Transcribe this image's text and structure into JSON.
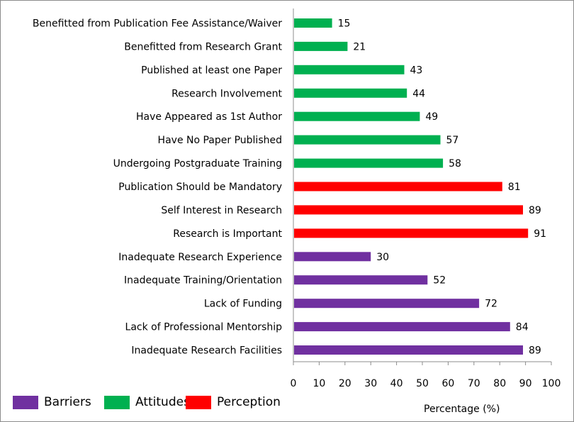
{
  "chart_data": {
    "type": "bar",
    "orientation": "horizontal",
    "xlabel": "Percentage (%)",
    "xlim": [
      0,
      100
    ],
    "xticks": [
      0,
      10,
      20,
      30,
      40,
      50,
      60,
      70,
      80,
      90,
      100
    ],
    "grid": false,
    "legend": {
      "placement": "bottom-left",
      "entries": [
        {
          "name": "Barriers",
          "color": "#7030a0"
        },
        {
          "name": "Attitudes",
          "color": "#00b050"
        },
        {
          "name": "Perception",
          "color": "#ff0000"
        }
      ]
    },
    "bars": [
      {
        "label": "Benefitted from Publication Fee Assistance/Waiver",
        "value": 15,
        "group": "Attitudes"
      },
      {
        "label": "Benefitted from Research Grant",
        "value": 21,
        "group": "Attitudes"
      },
      {
        "label": "Published at least one Paper",
        "value": 43,
        "group": "Attitudes"
      },
      {
        "label": "Research Involvement",
        "value": 44,
        "group": "Attitudes"
      },
      {
        "label": "Have Appeared as 1st Author",
        "value": 49,
        "group": "Attitudes"
      },
      {
        "label": "Have No Paper Published",
        "value": 57,
        "group": "Attitudes"
      },
      {
        "label": "Undergoing Postgraduate Training",
        "value": 58,
        "group": "Attitudes"
      },
      {
        "label": "Publication Should be Mandatory",
        "value": 81,
        "group": "Perception"
      },
      {
        "label": "Self Interest in Research",
        "value": 89,
        "group": "Perception"
      },
      {
        "label": "Research is Important",
        "value": 91,
        "group": "Perception"
      },
      {
        "label": "Inadequate Research Experience",
        "value": 30,
        "group": "Barriers"
      },
      {
        "label": "Inadequate Training/Orientation",
        "value": 52,
        "group": "Barriers"
      },
      {
        "label": "Lack of Funding",
        "value": 72,
        "group": "Barriers"
      },
      {
        "label": "Lack of Professional Mentorship",
        "value": 84,
        "group": "Barriers"
      },
      {
        "label": "Inadequate Research Facilities",
        "value": 89,
        "group": "Barriers"
      }
    ]
  }
}
